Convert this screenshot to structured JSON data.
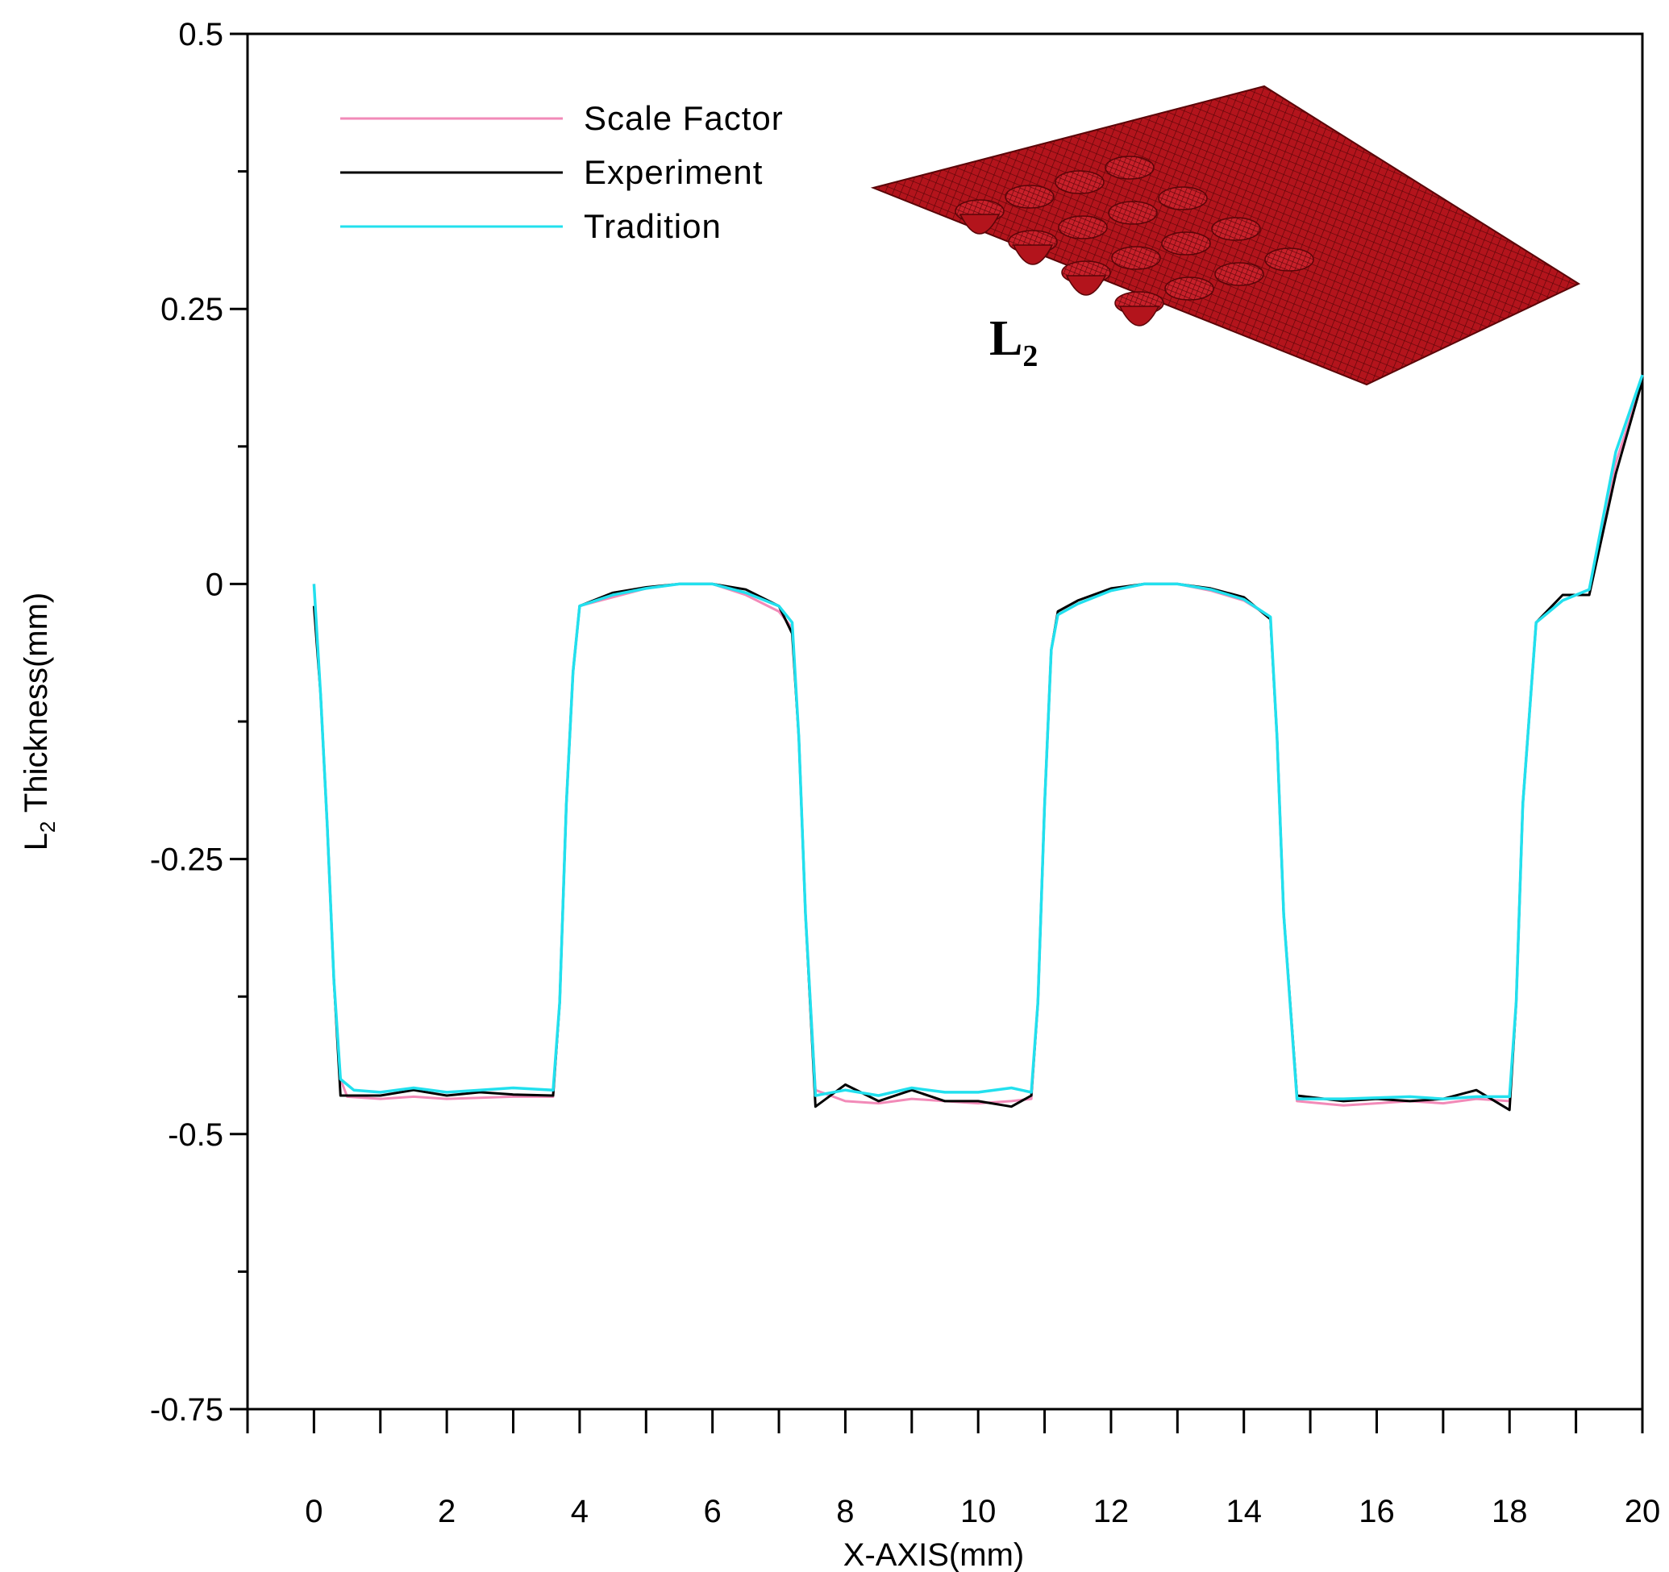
{
  "chart_data": {
    "type": "line",
    "xlabel": "X-AXIS(mm)",
    "ylabel_main": "L",
    "ylabel_sub": "2",
    "ylabel_rest": " Thickness(mm)",
    "xlim": [
      -1,
      20
    ],
    "ylim": [
      -0.75,
      0.5
    ],
    "x_ticks": [
      0,
      2,
      4,
      6,
      8,
      10,
      12,
      14,
      16,
      18,
      20
    ],
    "x_minor_ticks": [
      -1,
      1,
      3,
      5,
      7,
      9,
      11,
      13,
      15,
      17,
      19
    ],
    "y_ticks": [
      {
        "value": 0.5,
        "label": "0.5"
      },
      {
        "value": 0.25,
        "label": "0.25"
      },
      {
        "value": 0,
        "label": "0"
      },
      {
        "value": -0.25,
        "label": "-0.25"
      },
      {
        "value": -0.5,
        "label": "-0.5"
      },
      {
        "value": -0.75,
        "label": "-0.75"
      }
    ],
    "y_minor_ticks": [
      0.375,
      0.125,
      -0.125,
      -0.375,
      -0.625
    ],
    "grid": false,
    "legend_position": "top-left",
    "series": [
      {
        "name": "Scale Factor",
        "color": "#f28ab8",
        "points": [
          [
            0,
            0
          ],
          [
            0.1,
            -0.1
          ],
          [
            0.2,
            -0.22
          ],
          [
            0.3,
            -0.36
          ],
          [
            0.4,
            -0.45
          ],
          [
            0.5,
            -0.466
          ],
          [
            1,
            -0.468
          ],
          [
            1.5,
            -0.466
          ],
          [
            2,
            -0.468
          ],
          [
            2.5,
            -0.467
          ],
          [
            3,
            -0.466
          ],
          [
            3.6,
            -0.466
          ],
          [
            3.7,
            -0.38
          ],
          [
            3.8,
            -0.2
          ],
          [
            3.9,
            -0.08
          ],
          [
            4,
            -0.02
          ],
          [
            4.5,
            -0.012
          ],
          [
            5,
            -0.004
          ],
          [
            5.5,
            0
          ],
          [
            6,
            0
          ],
          [
            6.5,
            -0.01
          ],
          [
            7,
            -0.025
          ],
          [
            7.2,
            -0.04
          ],
          [
            7.3,
            -0.14
          ],
          [
            7.4,
            -0.3
          ],
          [
            7.55,
            -0.46
          ],
          [
            8,
            -0.47
          ],
          [
            8.5,
            -0.472
          ],
          [
            9,
            -0.468
          ],
          [
            9.5,
            -0.47
          ],
          [
            10,
            -0.472
          ],
          [
            10.5,
            -0.47
          ],
          [
            10.8,
            -0.468
          ],
          [
            10.9,
            -0.38
          ],
          [
            11,
            -0.2
          ],
          [
            11.1,
            -0.06
          ],
          [
            11.2,
            -0.028
          ],
          [
            11.5,
            -0.018
          ],
          [
            12,
            -0.006
          ],
          [
            12.5,
            0
          ],
          [
            13,
            0
          ],
          [
            13.5,
            -0.006
          ],
          [
            14,
            -0.015
          ],
          [
            14.4,
            -0.03
          ],
          [
            14.5,
            -0.14
          ],
          [
            14.6,
            -0.3
          ],
          [
            14.8,
            -0.47
          ],
          [
            15.5,
            -0.474
          ],
          [
            16,
            -0.472
          ],
          [
            16.5,
            -0.47
          ],
          [
            17,
            -0.472
          ],
          [
            17.5,
            -0.468
          ],
          [
            18,
            -0.47
          ],
          [
            18.1,
            -0.38
          ],
          [
            18.2,
            -0.2
          ],
          [
            18.4,
            -0.035
          ],
          [
            18.8,
            -0.015
          ],
          [
            19.2,
            -0.005
          ],
          [
            19.6,
            0.11
          ],
          [
            20,
            0.185
          ]
        ]
      },
      {
        "name": "Experiment",
        "color": "#000000",
        "points": [
          [
            0,
            -0.02
          ],
          [
            0.1,
            -0.1
          ],
          [
            0.2,
            -0.22
          ],
          [
            0.3,
            -0.36
          ],
          [
            0.4,
            -0.465
          ],
          [
            1,
            -0.465
          ],
          [
            1.5,
            -0.46
          ],
          [
            2,
            -0.465
          ],
          [
            2.5,
            -0.462
          ],
          [
            3,
            -0.464
          ],
          [
            3.6,
            -0.465
          ],
          [
            3.7,
            -0.38
          ],
          [
            3.8,
            -0.2
          ],
          [
            3.9,
            -0.08
          ],
          [
            4,
            -0.02
          ],
          [
            4.5,
            -0.008
          ],
          [
            5,
            -0.003
          ],
          [
            5.5,
            0
          ],
          [
            6,
            0
          ],
          [
            6.5,
            -0.005
          ],
          [
            7,
            -0.02
          ],
          [
            7.2,
            -0.045
          ],
          [
            7.3,
            -0.14
          ],
          [
            7.4,
            -0.3
          ],
          [
            7.55,
            -0.475
          ],
          [
            8,
            -0.455
          ],
          [
            8.5,
            -0.47
          ],
          [
            9,
            -0.46
          ],
          [
            9.5,
            -0.47
          ],
          [
            10,
            -0.47
          ],
          [
            10.5,
            -0.475
          ],
          [
            10.8,
            -0.465
          ],
          [
            10.9,
            -0.38
          ],
          [
            11,
            -0.2
          ],
          [
            11.1,
            -0.06
          ],
          [
            11.2,
            -0.025
          ],
          [
            11.5,
            -0.015
          ],
          [
            12,
            -0.004
          ],
          [
            12.5,
            0
          ],
          [
            13,
            0
          ],
          [
            13.5,
            -0.004
          ],
          [
            14,
            -0.012
          ],
          [
            14.4,
            -0.032
          ],
          [
            14.5,
            -0.14
          ],
          [
            14.6,
            -0.3
          ],
          [
            14.8,
            -0.465
          ],
          [
            15.5,
            -0.47
          ],
          [
            16,
            -0.468
          ],
          [
            16.5,
            -0.47
          ],
          [
            17,
            -0.468
          ],
          [
            17.5,
            -0.46
          ],
          [
            18,
            -0.478
          ],
          [
            18.1,
            -0.38
          ],
          [
            18.2,
            -0.2
          ],
          [
            18.4,
            -0.035
          ],
          [
            18.8,
            -0.01
          ],
          [
            19.2,
            -0.01
          ],
          [
            19.6,
            0.1
          ],
          [
            20,
            0.185
          ]
        ]
      },
      {
        "name": "Tradition",
        "color": "#22e0ee",
        "points": [
          [
            0,
            0
          ],
          [
            0.1,
            -0.1
          ],
          [
            0.2,
            -0.22
          ],
          [
            0.3,
            -0.36
          ],
          [
            0.4,
            -0.45
          ],
          [
            0.6,
            -0.46
          ],
          [
            1,
            -0.462
          ],
          [
            1.5,
            -0.458
          ],
          [
            2,
            -0.462
          ],
          [
            2.5,
            -0.46
          ],
          [
            3,
            -0.458
          ],
          [
            3.6,
            -0.46
          ],
          [
            3.7,
            -0.38
          ],
          [
            3.8,
            -0.2
          ],
          [
            3.9,
            -0.08
          ],
          [
            4,
            -0.02
          ],
          [
            4.5,
            -0.01
          ],
          [
            5,
            -0.004
          ],
          [
            5.5,
            0
          ],
          [
            6,
            0
          ],
          [
            6.5,
            -0.008
          ],
          [
            7,
            -0.02
          ],
          [
            7.2,
            -0.035
          ],
          [
            7.3,
            -0.14
          ],
          [
            7.4,
            -0.3
          ],
          [
            7.55,
            -0.465
          ],
          [
            8,
            -0.46
          ],
          [
            8.5,
            -0.465
          ],
          [
            9,
            -0.458
          ],
          [
            9.5,
            -0.462
          ],
          [
            10,
            -0.462
          ],
          [
            10.5,
            -0.458
          ],
          [
            10.8,
            -0.462
          ],
          [
            10.9,
            -0.38
          ],
          [
            11,
            -0.2
          ],
          [
            11.1,
            -0.06
          ],
          [
            11.2,
            -0.028
          ],
          [
            11.5,
            -0.018
          ],
          [
            12,
            -0.006
          ],
          [
            12.5,
            0
          ],
          [
            13,
            0
          ],
          [
            13.5,
            -0.005
          ],
          [
            14,
            -0.014
          ],
          [
            14.4,
            -0.03
          ],
          [
            14.5,
            -0.14
          ],
          [
            14.6,
            -0.3
          ],
          [
            14.8,
            -0.468
          ],
          [
            15.5,
            -0.468
          ],
          [
            16,
            -0.467
          ],
          [
            16.5,
            -0.466
          ],
          [
            17,
            -0.468
          ],
          [
            17.5,
            -0.466
          ],
          [
            18,
            -0.466
          ],
          [
            18.1,
            -0.38
          ],
          [
            18.2,
            -0.2
          ],
          [
            18.4,
            -0.035
          ],
          [
            18.8,
            -0.015
          ],
          [
            19.2,
            -0.005
          ],
          [
            19.6,
            0.12
          ],
          [
            20,
            0.19
          ]
        ]
      }
    ],
    "inset": {
      "label_main": "L",
      "label_sub": "2",
      "surface_color": "#b3141c",
      "mesh_color": "#5a0508"
    }
  }
}
